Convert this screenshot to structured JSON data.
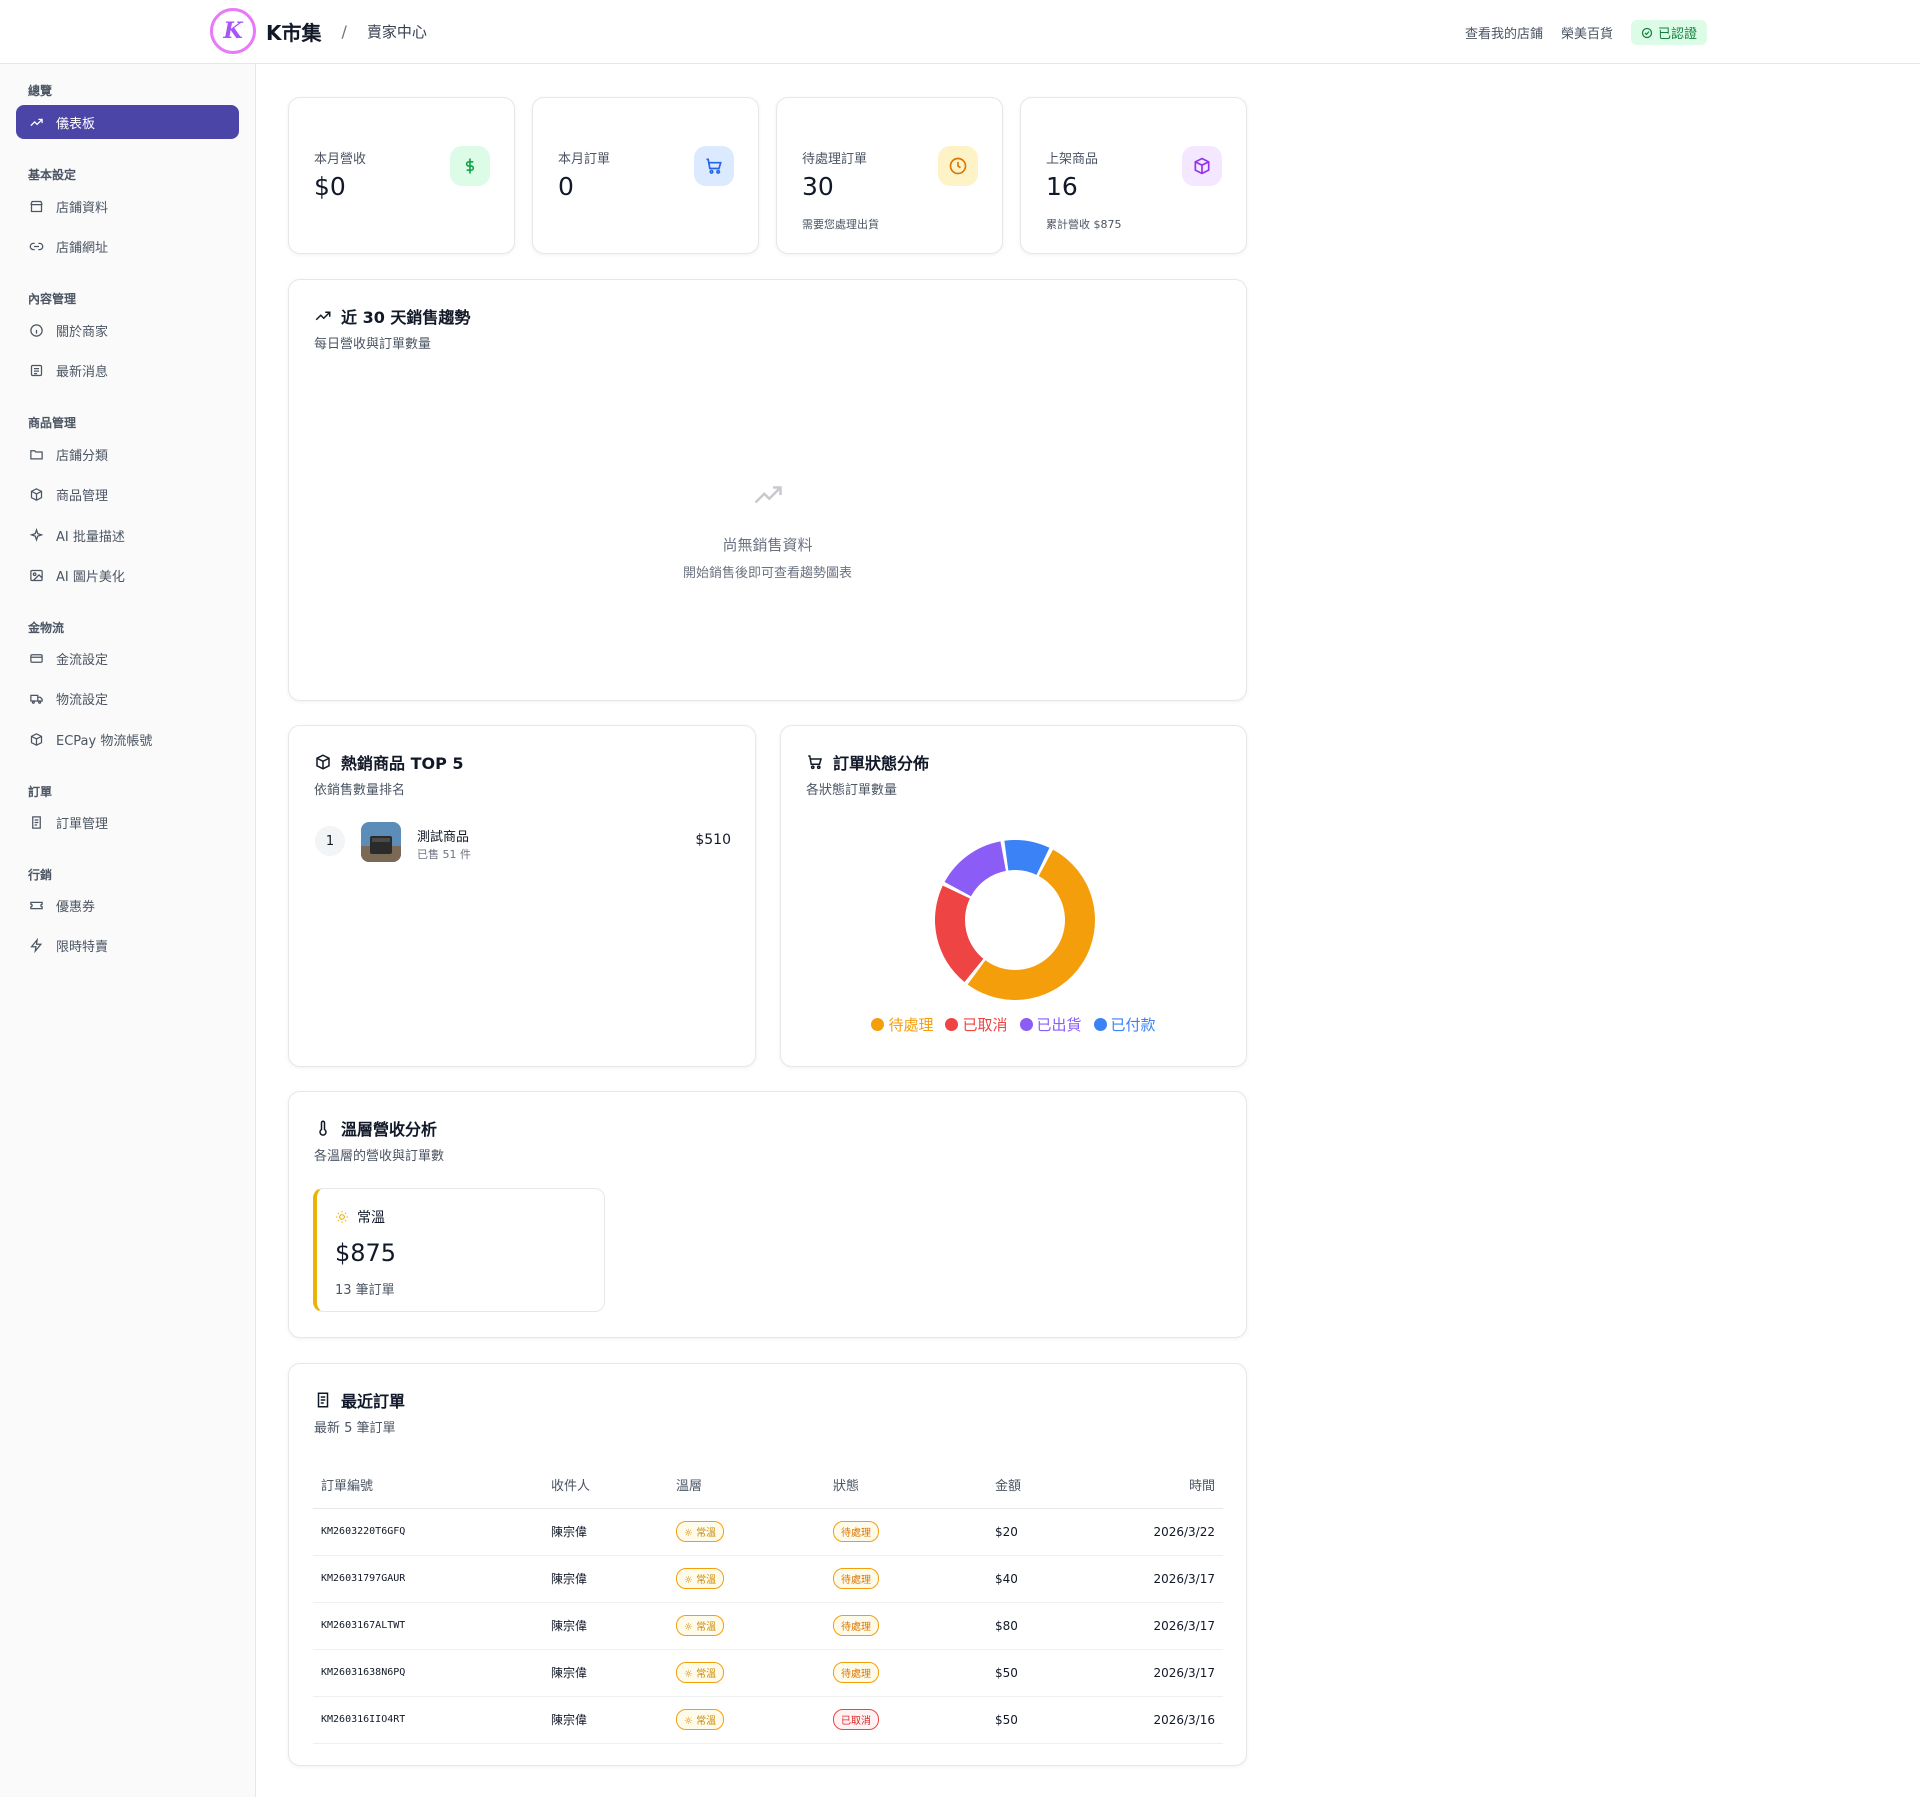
{
  "header": {
    "brand_name": "K市集",
    "separator": "/",
    "section": "賣家中心",
    "links": [
      "查看我的店鋪",
      "榮美百貨"
    ],
    "verified_label": "已認證"
  },
  "sidebar": {
    "sections": {
      "overview": "總覽",
      "basic": "基本設定",
      "content": "內容管理",
      "product": "商品管理",
      "finance": "金物流",
      "orders": "訂單",
      "marketing": "行銷"
    },
    "items": {
      "dashboard": "儀表板",
      "store_info": "店鋪資料",
      "store_url": "店鋪網址",
      "about": "關於商家",
      "news": "最新消息",
      "categories": "店鋪分類",
      "products": "商品管理",
      "ai_desc": "AI 批量描述",
      "ai_image": "AI 圖片美化",
      "payment": "金流設定",
      "logistics": "物流設定",
      "ecpay": "ECPay 物流帳號",
      "order_mgmt": "訂單管理",
      "coupons": "優惠券",
      "flash_sale": "限時特賣"
    }
  },
  "stats": {
    "revenue": {
      "label": "本月營收",
      "value": "$0"
    },
    "orders": {
      "label": "本月訂單",
      "value": "0"
    },
    "pending": {
      "label": "待處理訂單",
      "value": "30",
      "note": "需要您處理出貨"
    },
    "listed": {
      "label": "上架商品",
      "value": "16",
      "note": "累計營收 $875"
    }
  },
  "trend": {
    "title": "近 30 天銷售趨勢",
    "subtitle": "每日營收與訂單數量",
    "empty_title": "尚無銷售資料",
    "empty_sub": "開始銷售後即可查看趨勢圖表"
  },
  "top_products": {
    "title": "熱銷商品 TOP 5",
    "subtitle": "依銷售數量排名",
    "items": [
      {
        "rank": "1",
        "name": "測試商品",
        "sold": "已售 51 件",
        "amount": "$510"
      }
    ]
  },
  "order_status": {
    "title": "訂單狀態分佈",
    "subtitle": "各狀態訂單數量"
  },
  "chart_data": {
    "type": "pie",
    "categories": [
      "待處理",
      "已取消",
      "已出貨",
      "已付款"
    ],
    "values": [
      53,
      22,
      15,
      10
    ],
    "colors": [
      "#f59e0b",
      "#ef4444",
      "#8b5cf6",
      "#3b82f6"
    ],
    "legend": "bottom"
  },
  "temperature": {
    "title": "溫層營收分析",
    "subtitle": "各溫層的營收與訂單數",
    "zone_name": "常溫",
    "zone_amount": "$875",
    "zone_orders": "13 筆訂單"
  },
  "recent_orders": {
    "title": "最近訂單",
    "subtitle": "最新 5 筆訂單",
    "columns": [
      "訂單編號",
      "收件人",
      "溫層",
      "狀態",
      "金額",
      "時間"
    ],
    "rows": [
      {
        "id": "KM2603220T6GFQ",
        "recipient": "陳宗偉",
        "temp": "常溫",
        "status": "待處理",
        "status_type": "pending",
        "amount": "$20",
        "time": "2026/3/22"
      },
      {
        "id": "KM26031797GAUR",
        "recipient": "陳宗偉",
        "temp": "常溫",
        "status": "待處理",
        "status_type": "pending",
        "amount": "$40",
        "time": "2026/3/17"
      },
      {
        "id": "KM2603167ALTWT",
        "recipient": "陳宗偉",
        "temp": "常溫",
        "status": "待處理",
        "status_type": "pending",
        "amount": "$80",
        "time": "2026/3/17"
      },
      {
        "id": "KM26031638N6PQ",
        "recipient": "陳宗偉",
        "temp": "常溫",
        "status": "待處理",
        "status_type": "pending",
        "amount": "$50",
        "time": "2026/3/17"
      },
      {
        "id": "KM260316IIO4RT",
        "recipient": "陳宗偉",
        "temp": "常溫",
        "status": "已取消",
        "status_type": "cancel",
        "amount": "$50",
        "time": "2026/3/16"
      }
    ]
  }
}
